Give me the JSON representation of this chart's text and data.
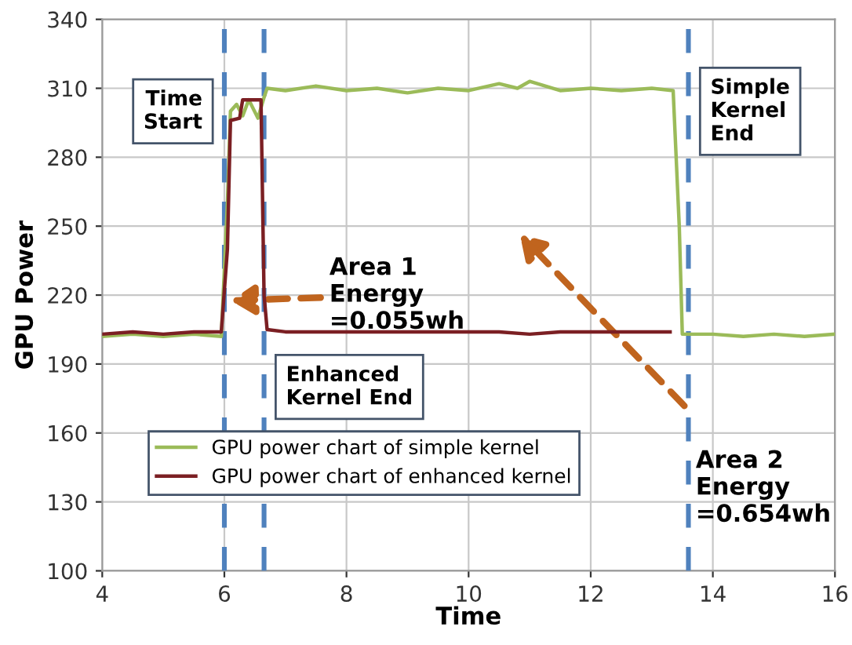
{
  "chart_data": {
    "type": "line",
    "xlabel": "Time",
    "ylabel": "GPU Power",
    "xlim": [
      4,
      16
    ],
    "xticks": [
      4,
      6,
      8,
      10,
      12,
      14,
      16
    ],
    "ylim": [
      100,
      340
    ],
    "yticks": [
      100,
      130,
      160,
      190,
      220,
      250,
      280,
      310,
      340
    ],
    "grid": true,
    "legend": "bottom left",
    "line_style": "solid",
    "series": [
      {
        "name": "GPU power chart of simple kernel",
        "color": "#9bbb59",
        "x": [
          4,
          4.5,
          5,
          5.5,
          5.95,
          6.05,
          6.1,
          6.2,
          6.3,
          6.4,
          6.55,
          6.65,
          6.7,
          7,
          7.5,
          8,
          8.5,
          9,
          9.5,
          10,
          10.5,
          10.8,
          11,
          11.5,
          12,
          12.5,
          13,
          13.35,
          13.45,
          13.5,
          14,
          14.5,
          15,
          15.5,
          16
        ],
        "values": [
          202,
          203,
          202,
          203,
          202,
          260,
          300,
          303,
          298,
          305,
          297,
          306,
          310,
          309,
          311,
          309,
          310,
          308,
          310,
          309,
          312,
          310,
          313,
          309,
          310,
          309,
          310,
          309,
          250,
          203,
          203,
          202,
          203,
          202,
          203
        ]
      },
      {
        "name": "GPU power chart of enhanced kernel",
        "color": "#7b1f23",
        "x": [
          4,
          4.5,
          5,
          5.5,
          5.95,
          6.05,
          6.1,
          6.25,
          6.3,
          6.6,
          6.65,
          6.7,
          7,
          7.5,
          8,
          8.5,
          9,
          9.5,
          10,
          10.5,
          11,
          11.5,
          12,
          12.5,
          13,
          13.3
        ],
        "values": [
          203,
          204,
          203,
          204,
          204,
          240,
          296,
          297,
          305,
          305,
          220,
          205,
          204,
          204,
          204,
          204,
          204,
          204,
          204,
          204,
          203,
          204,
          204,
          204,
          204,
          204
        ]
      }
    ],
    "ref_lines": [
      {
        "axis": "x",
        "value": 6,
        "label": "Time\nStart",
        "color": "#4f81bd",
        "line_style": "dashed"
      },
      {
        "axis": "x",
        "value": 6.65,
        "label": "Enhanced\nKernel End",
        "color": "#4f81bd",
        "line_style": "dashed"
      },
      {
        "axis": "x",
        "value": 13.6,
        "label": "Simple\nKernel\nEnd",
        "color": "#4f81bd",
        "line_style": "dashed"
      }
    ],
    "annotations": [
      "Area 1\nEnergy\n=0.055wh",
      "Area 2\nEnergy\n=0.654wh"
    ]
  }
}
